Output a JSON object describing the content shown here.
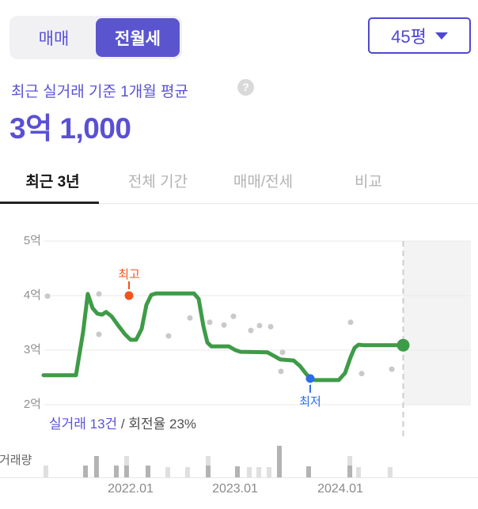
{
  "accent_color": "#5a52d5",
  "toggle": {
    "buy_label": "매매",
    "rent_label": "전월세"
  },
  "size_dropdown": {
    "value": "45평"
  },
  "summary": {
    "title": "최근 실거래 기준 1개월 평균",
    "help_icon": "?",
    "value": "3억 1,000"
  },
  "tabs": [
    {
      "label": "최근 3년",
      "active": true
    },
    {
      "label": "전체 기간",
      "active": false
    },
    {
      "label": "매매/전세",
      "active": false
    },
    {
      "label": "비교",
      "active": false
    }
  ],
  "caption": {
    "deals": "실거래 13건",
    "turnover": " / 회전율 23%"
  },
  "volume_label": "거래량",
  "chart_data": {
    "type": "line",
    "unit": "억 (KRW 100M)",
    "ylim": [
      2,
      5
    ],
    "grid": true,
    "y_ticks": [
      {
        "v": 5,
        "label": "5억"
      },
      {
        "v": 4,
        "label": "4억"
      },
      {
        "v": 3,
        "label": "3억"
      },
      {
        "v": 2,
        "label": "2억"
      }
    ],
    "x_ticks": [
      {
        "t": 2022.0,
        "label": "2022.01"
      },
      {
        "t": 2023.0,
        "label": "2023.01"
      },
      {
        "t": 2024.0,
        "label": "2024.01"
      }
    ],
    "line_color": "#3e9b47",
    "line": [
      [
        2021.17,
        2.54
      ],
      [
        2021.479,
        2.54
      ],
      [
        2021.547,
        3.33
      ],
      [
        2021.592,
        4.03
      ],
      [
        2021.638,
        3.77
      ],
      [
        2021.683,
        3.67
      ],
      [
        2021.728,
        3.65
      ],
      [
        2021.766,
        3.7
      ],
      [
        2021.819,
        3.62
      ],
      [
        2021.879,
        3.46
      ],
      [
        2021.947,
        3.29
      ],
      [
        2022.0,
        3.19
      ],
      [
        2022.053,
        3.19
      ],
      [
        2022.106,
        3.39
      ],
      [
        2022.151,
        3.83
      ],
      [
        2022.196,
        4.01
      ],
      [
        2022.242,
        4.04
      ],
      [
        2022.604,
        4.04
      ],
      [
        2022.649,
        3.94
      ],
      [
        2022.694,
        3.44
      ],
      [
        2022.732,
        3.14
      ],
      [
        2022.77,
        3.07
      ],
      [
        2022.936,
        3.07
      ],
      [
        2023.0,
        3.0
      ],
      [
        2023.049,
        2.97
      ],
      [
        2023.306,
        2.96
      ],
      [
        2023.381,
        2.88
      ],
      [
        2023.426,
        2.83
      ],
      [
        2023.555,
        2.81
      ],
      [
        2023.615,
        2.71
      ],
      [
        2023.668,
        2.58
      ],
      [
        2023.713,
        2.48
      ],
      [
        2023.758,
        2.45
      ],
      [
        2023.985,
        2.45
      ],
      [
        2024.045,
        2.58
      ],
      [
        2024.098,
        2.87
      ],
      [
        2024.136,
        3.04
      ],
      [
        2024.174,
        3.1
      ],
      [
        2024.226,
        3.09
      ],
      [
        2024.6,
        3.09
      ]
    ],
    "scatter_color": "#c9c9c9",
    "scatter": [
      [
        2021.208,
        3.99
      ],
      [
        2021.698,
        4.03
      ],
      [
        2021.698,
        3.29
      ],
      [
        2022.362,
        3.26
      ],
      [
        2022.566,
        3.59
      ],
      [
        2022.755,
        3.51
      ],
      [
        2022.891,
        3.46
      ],
      [
        2022.981,
        3.62
      ],
      [
        2023.147,
        3.36
      ],
      [
        2023.23,
        3.45
      ],
      [
        2023.336,
        3.43
      ],
      [
        2023.449,
        2.96
      ],
      [
        2023.434,
        2.61
      ],
      [
        2024.098,
        3.51
      ],
      [
        2024.204,
        2.57
      ],
      [
        2024.491,
        2.65
      ]
    ],
    "max_marker": {
      "t": 2021.985,
      "v": 4.0,
      "label": "최고",
      "color": "#f2541c"
    },
    "min_marker": {
      "t": 2023.713,
      "v": 2.48,
      "label": "최저",
      "color": "#2c6ce8"
    },
    "end_marker": {
      "t": 2024.6,
      "v": 3.09,
      "color": "#3e9b47"
    },
    "future_start": 2024.6,
    "volume": {
      "dark_color": "#b3b3b3",
      "light_color": "#dfdfdf",
      "bars": [
        {
          "t": 2021.192,
          "dark": 0,
          "light": 15
        },
        {
          "t": 2021.57,
          "dark": 15,
          "light": 0
        },
        {
          "t": 2021.675,
          "dark": 27,
          "light": 0
        },
        {
          "t": 2021.864,
          "dark": 15,
          "light": 0
        },
        {
          "t": 2021.962,
          "dark": 15,
          "light": 12
        },
        {
          "t": 2022.166,
          "dark": 15,
          "light": 0
        },
        {
          "t": 2022.355,
          "dark": 0,
          "light": 13
        },
        {
          "t": 2022.543,
          "dark": 0,
          "light": 13
        },
        {
          "t": 2022.74,
          "dark": 15,
          "light": 12
        },
        {
          "t": 2023.019,
          "dark": 14,
          "light": 0
        },
        {
          "t": 2023.132,
          "dark": 0,
          "light": 13
        },
        {
          "t": 2023.223,
          "dark": 0,
          "light": 13
        },
        {
          "t": 2023.321,
          "dark": 0,
          "light": 13
        },
        {
          "t": 2023.419,
          "dark": 40,
          "light": 0
        },
        {
          "t": 2023.698,
          "dark": 14,
          "light": 0
        },
        {
          "t": 2024.091,
          "dark": 15,
          "light": 12
        },
        {
          "t": 2024.174,
          "dark": 0,
          "light": 13
        },
        {
          "t": 2024.475,
          "dark": 0,
          "light": 13
        }
      ]
    }
  }
}
